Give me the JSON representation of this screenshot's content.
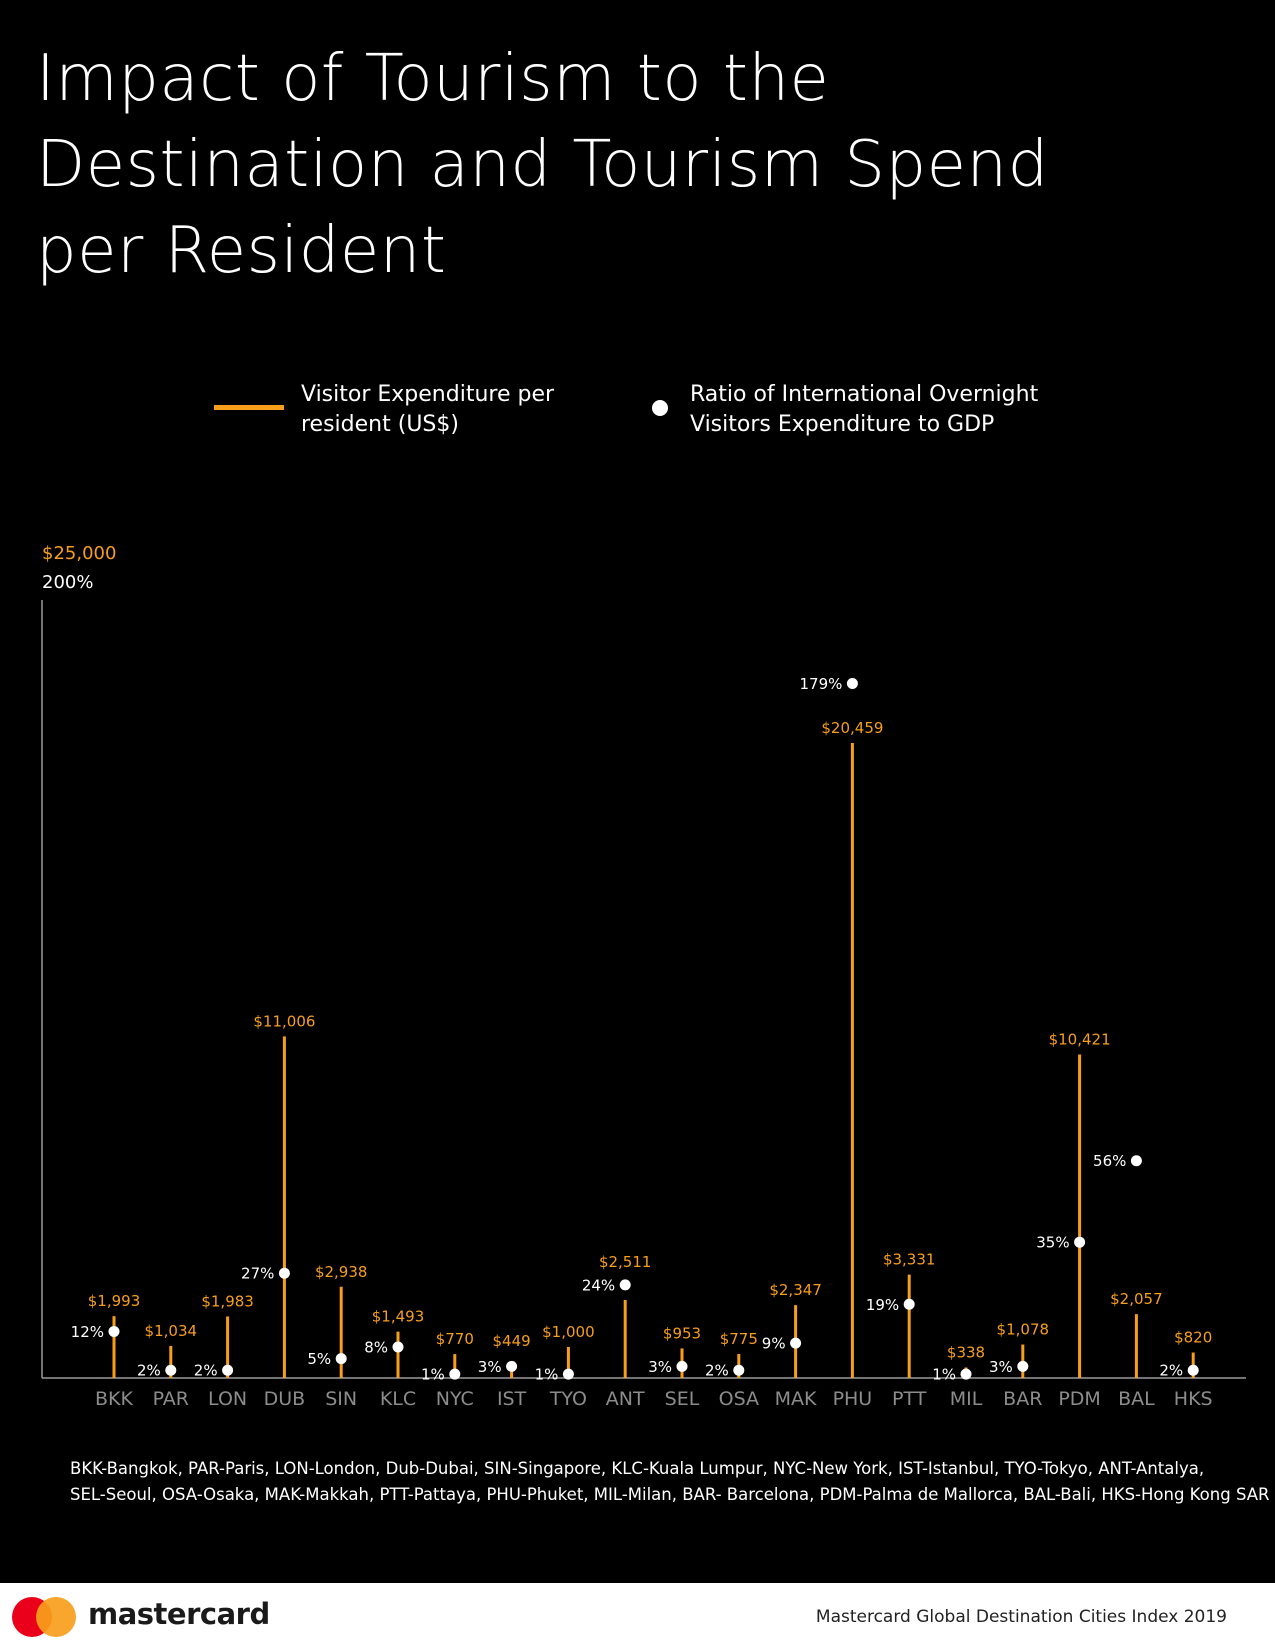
{
  "title": "Impact of Tourism to the\nDestination and Tourism Spend\nper Resident",
  "legend": {
    "expenditure_label": "Visitor Expenditure per\nresident (US$)",
    "ratio_label": "Ratio of International Overnight\nVisitors Expenditure to GDP"
  },
  "colors": {
    "accent": "#F79E1B",
    "dot": "#FFFFFF",
    "background": "#000000",
    "axis": "#9A9A9A"
  },
  "chart_data": {
    "type": "bar",
    "title": "Impact of Tourism to the Destination and Tourism Spend per Resident",
    "categories": [
      "BKK",
      "PAR",
      "LON",
      "DUB",
      "SIN",
      "KLC",
      "NYC",
      "IST",
      "TYO",
      "ANT",
      "SEL",
      "OSA",
      "MAK",
      "PHU",
      "PTT",
      "MIL",
      "BAR",
      "PDM",
      "BAL",
      "HKS"
    ],
    "y_axis_label_expenditure": "$25,000",
    "y_axis_label_ratio": "200%",
    "ylim_expenditure": [
      0,
      25000
    ],
    "ylim_ratio": [
      0,
      200
    ],
    "series": [
      {
        "name": "Visitor Expenditure per resident (US$)",
        "kind": "bar",
        "values": [
          1993,
          1034,
          1983,
          11006,
          2938,
          1493,
          770,
          449,
          1000,
          2511,
          953,
          775,
          2347,
          20459,
          3331,
          338,
          1078,
          10421,
          2057,
          820
        ],
        "labels": [
          "$1,993",
          "$1,034",
          "$1,983",
          "$11,006",
          "$2,938",
          "$1,493",
          "$770",
          "$449",
          "$1,000",
          "$2,511",
          "$953",
          "$775",
          "$2,347",
          "$20,459",
          "$3,331",
          "$338",
          "$1,078",
          "$10,421",
          "$2,057",
          "$820"
        ]
      },
      {
        "name": "Ratio of International Overnight Visitors Expenditure to GDP",
        "kind": "dot",
        "values": [
          12,
          2,
          2,
          27,
          5,
          8,
          1,
          3,
          1,
          24,
          3,
          2,
          9,
          179,
          19,
          1,
          3,
          35,
          56,
          2
        ],
        "labels": [
          "12%",
          "2%",
          "2%",
          "27%",
          "5%",
          "8%",
          "1%",
          "3%",
          "1%",
          "24%",
          "3%",
          "2%",
          "9%",
          "179%",
          "19%",
          "1%",
          "3%",
          "35%",
          "56%",
          "2%"
        ]
      }
    ]
  },
  "abbreviations": "BKK-Bangkok, PAR-Paris, LON-London, Dub-Dubai, SIN-Singapore, KLC-Kuala Lumpur, NYC-New York, IST-Istanbul, TYO-Tokyo, ANT-Antalya,\nSEL-Seoul, OSA-Osaka, MAK-Makkah, PTT-Pattaya, PHU-Phuket, MIL-Milan, BAR- Barcelona, PDM-Palma de Mallorca, BAL-Bali,  HKS-Hong Kong SAR",
  "footer": {
    "brand": "mastercard",
    "source": "Mastercard Global Destination Cities Index 2019"
  }
}
